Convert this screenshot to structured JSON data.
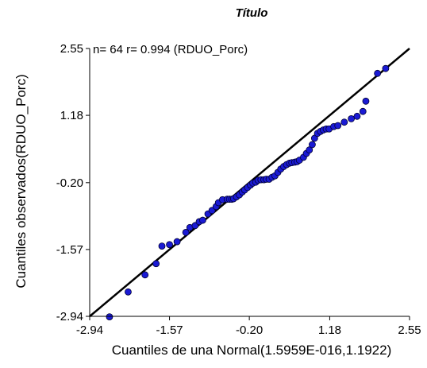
{
  "chart_data": {
    "type": "scatter",
    "title": "Título",
    "annotation": "n= 64 r= 0.994 (RDUO_Porc)",
    "xlabel": "Cuantiles de una Normal(1.5959E-016,1.1922)",
    "ylabel": "Cuantiles observados(RDUO_Porc)",
    "xlim": [
      -2.94,
      2.55
    ],
    "ylim": [
      -2.94,
      2.55
    ],
    "xticks": [
      "-2.94",
      "-1.57",
      "-0.20",
      "1.18",
      "2.55"
    ],
    "yticks": [
      "-2.94",
      "-1.57",
      "-0.20",
      "1.18",
      "2.55"
    ],
    "grid": false,
    "marker_color": "#1a1ad4",
    "line_color": "#000000",
    "reference_line": {
      "from": [
        -2.94,
        -2.94
      ],
      "to": [
        2.55,
        2.55
      ]
    },
    "points": [
      [
        -2.6,
        -2.95
      ],
      [
        -2.28,
        -2.44
      ],
      [
        -1.99,
        -2.09
      ],
      [
        -1.8,
        -1.86
      ],
      [
        -1.7,
        -1.5
      ],
      [
        -1.57,
        -1.47
      ],
      [
        -1.44,
        -1.41
      ],
      [
        -1.29,
        -1.22
      ],
      [
        -1.22,
        -1.12
      ],
      [
        -1.13,
        -1.08
      ],
      [
        -1.06,
        -1.0
      ],
      [
        -1.0,
        -0.97
      ],
      [
        -0.91,
        -0.84
      ],
      [
        -0.84,
        -0.77
      ],
      [
        -0.77,
        -0.69
      ],
      [
        -0.73,
        -0.61
      ],
      [
        -0.66,
        -0.55
      ],
      [
        -0.58,
        -0.54
      ],
      [
        -0.54,
        -0.54
      ],
      [
        -0.5,
        -0.54
      ],
      [
        -0.47,
        -0.53
      ],
      [
        -0.42,
        -0.49
      ],
      [
        -0.37,
        -0.45
      ],
      [
        -0.32,
        -0.39
      ],
      [
        -0.28,
        -0.35
      ],
      [
        -0.23,
        -0.3
      ],
      [
        -0.18,
        -0.25
      ],
      [
        -0.14,
        -0.21
      ],
      [
        -0.09,
        -0.19
      ],
      [
        -0.05,
        -0.15
      ],
      [
        0.0,
        -0.14
      ],
      [
        0.05,
        -0.14
      ],
      [
        0.09,
        -0.13
      ],
      [
        0.14,
        -0.13
      ],
      [
        0.19,
        -0.09
      ],
      [
        0.24,
        -0.06
      ],
      [
        0.29,
        0.01
      ],
      [
        0.34,
        0.08
      ],
      [
        0.39,
        0.13
      ],
      [
        0.44,
        0.17
      ],
      [
        0.49,
        0.2
      ],
      [
        0.53,
        0.21
      ],
      [
        0.58,
        0.22
      ],
      [
        0.62,
        0.23
      ],
      [
        0.66,
        0.26
      ],
      [
        0.73,
        0.32
      ],
      [
        0.78,
        0.4
      ],
      [
        0.83,
        0.47
      ],
      [
        0.88,
        0.58
      ],
      [
        0.92,
        0.71
      ],
      [
        0.97,
        0.81
      ],
      [
        1.02,
        0.85
      ],
      [
        1.07,
        0.88
      ],
      [
        1.12,
        0.9
      ],
      [
        1.17,
        0.9
      ],
      [
        1.25,
        0.95
      ],
      [
        1.32,
        0.97
      ],
      [
        1.43,
        1.04
      ],
      [
        1.55,
        1.11
      ],
      [
        1.65,
        1.16
      ],
      [
        1.75,
        1.26
      ],
      [
        1.8,
        1.47
      ],
      [
        2.0,
        2.04
      ],
      [
        2.14,
        2.14
      ]
    ]
  }
}
